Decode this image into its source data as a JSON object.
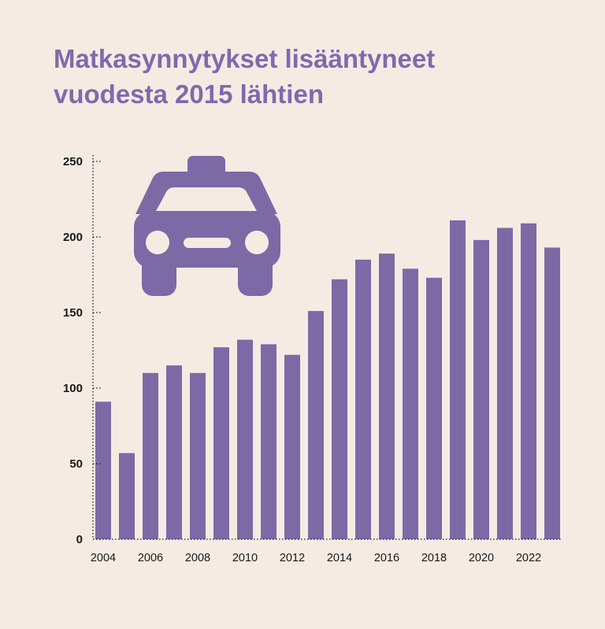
{
  "title_lines": [
    "Matkasynnytykset lisääntyneet",
    "vuodesta 2015 lähtien"
  ],
  "icon": "taxi-icon",
  "colors": {
    "bar": "#7c6aa6",
    "background": "#f6ebe3",
    "title": "#8169ad",
    "axis": "#1a1a1a"
  },
  "chart_data": {
    "type": "bar",
    "title": "Matkasynnytykset lisääntyneet vuodesta 2015 lähtien",
    "xlabel": "",
    "ylabel": "",
    "categories": [
      2004,
      2005,
      2006,
      2007,
      2008,
      2009,
      2010,
      2011,
      2012,
      2013,
      2014,
      2015,
      2016,
      2017,
      2018,
      2019,
      2020,
      2021,
      2022,
      2023
    ],
    "values": [
      91,
      57,
      110,
      115,
      110,
      127,
      132,
      129,
      122,
      151,
      172,
      185,
      189,
      179,
      173,
      211,
      198,
      206,
      209,
      193
    ],
    "x_tick_labels": [
      "2004",
      "2006",
      "2008",
      "2010",
      "2012",
      "2014",
      "2016",
      "2018",
      "2020",
      "2022"
    ],
    "y_ticks": [
      0,
      50,
      100,
      150,
      200,
      250
    ],
    "ylim": [
      0,
      250
    ],
    "grid": false,
    "legend": "none"
  }
}
